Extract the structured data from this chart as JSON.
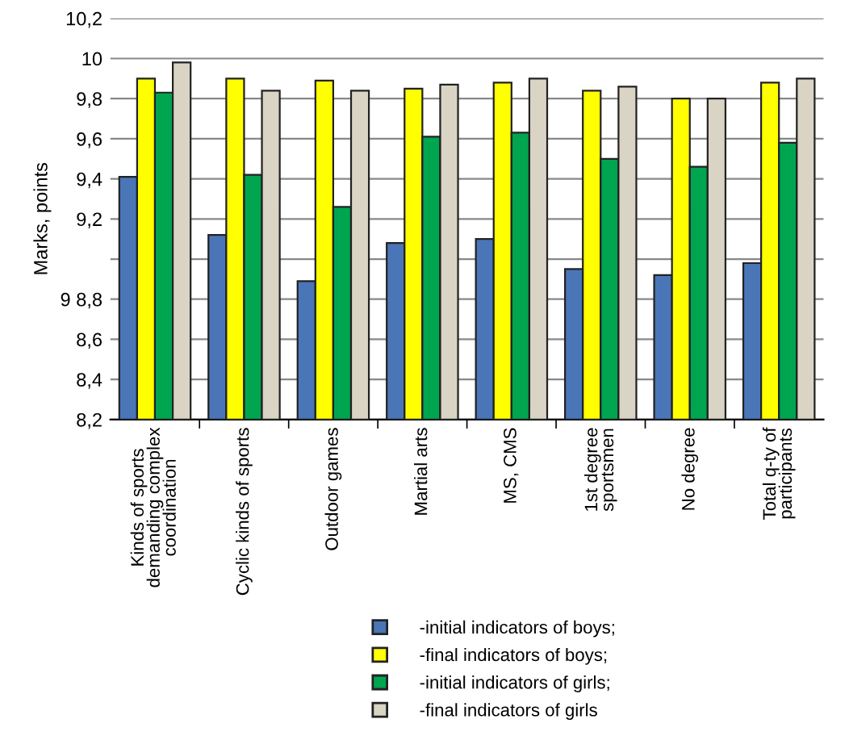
{
  "chart_data": {
    "type": "bar",
    "ylabel": "Marks, points",
    "categories": [
      "Kinds of sports\ndemanding complex\ncoordination",
      "Cyclic kinds of sports",
      "Outdoor games",
      "Martial arts",
      "MS, CMS",
      "1st degree\nsportsmen",
      "No degree",
      "Total q-ty of\nparticipants"
    ],
    "series": [
      {
        "name": "-initial indicators of boys;",
        "color": "#4a76b8",
        "values": [
          9.41,
          9.12,
          8.89,
          9.08,
          9.1,
          8.95,
          8.92,
          8.98
        ]
      },
      {
        "name": "-final indicators of boys;",
        "color": "#ffff00",
        "values": [
          9.9,
          9.9,
          9.89,
          9.85,
          9.88,
          9.84,
          9.8,
          9.88
        ]
      },
      {
        "name": "-initial indicators of girls;",
        "color": "#00a550",
        "values": [
          9.83,
          9.42,
          9.26,
          9.61,
          9.63,
          9.5,
          9.46,
          9.58
        ]
      },
      {
        "name": "-final indicators of girls",
        "color": "#d9d4c4",
        "values": [
          9.98,
          9.84,
          9.84,
          9.87,
          9.9,
          9.86,
          9.8,
          9.9
        ]
      }
    ],
    "ylim": [
      8.2,
      10.2
    ],
    "yticks": [
      {
        "value": 8.2,
        "label": "8,2"
      },
      {
        "value": 8.4,
        "label": "8,4"
      },
      {
        "value": 8.6,
        "label": "8,6"
      },
      {
        "value": 8.8,
        "label": "9 8,8"
      },
      {
        "value": 9.0,
        "label": null
      },
      {
        "value": 9.2,
        "label": "9,2"
      },
      {
        "value": 9.4,
        "label": "9,4"
      },
      {
        "value": 9.6,
        "label": "9,6"
      },
      {
        "value": 9.8,
        "label": "9,8"
      },
      {
        "value": 10.0,
        "label": "10"
      },
      {
        "value": 10.2,
        "label": "10,2"
      }
    ],
    "grid": "y",
    "legend": "bottom"
  }
}
